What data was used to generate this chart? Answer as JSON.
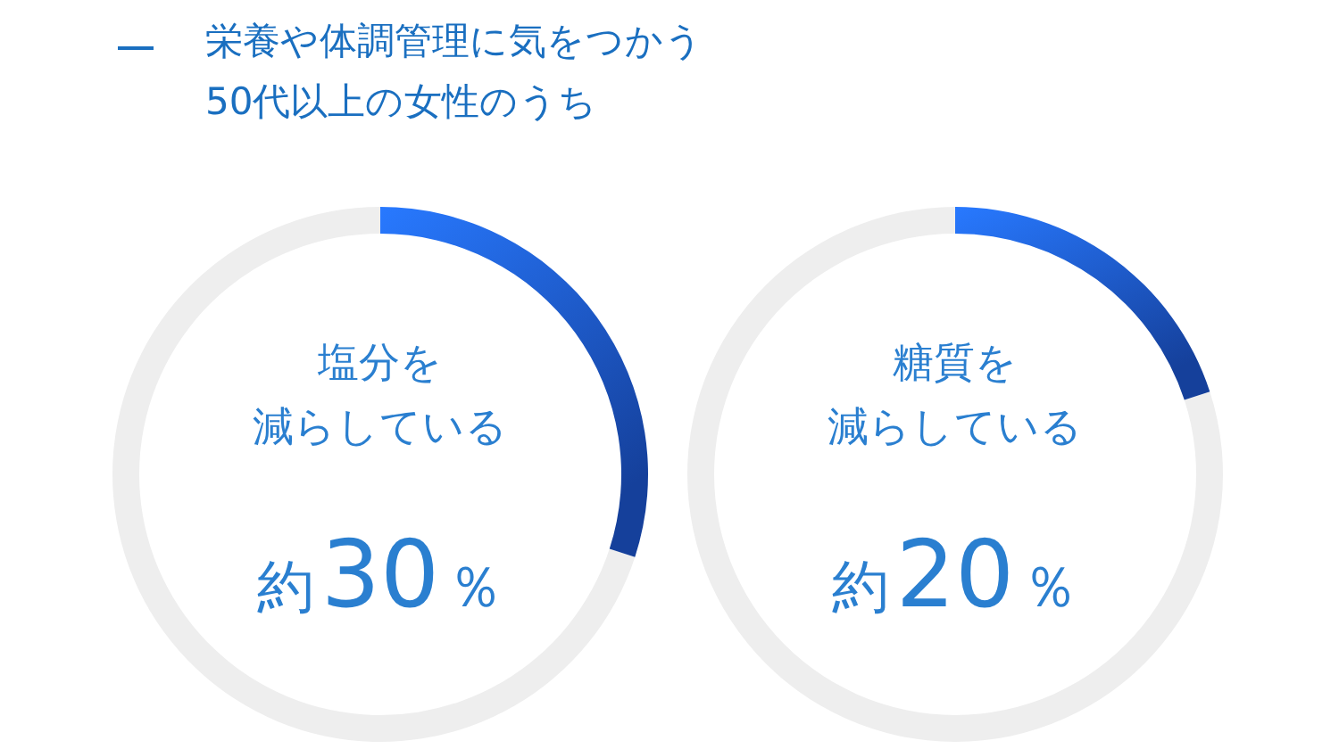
{
  "chart_data": [
    {
      "type": "donut",
      "subtitle": "栄養や体調管理に気をつかう\n50代以上の女性のうち",
      "title": "塩分を減らしている",
      "annotations": [
        "約30％"
      ],
      "categories": [
        null,
        null
      ],
      "values": [
        30,
        70
      ],
      "colors": [
        "#1a4fc0",
        "#eeeeee"
      ]
    },
    {
      "type": "donut",
      "title": "糖質を減らしている",
      "annotations": [
        "約20％"
      ],
      "categories": [
        null,
        null
      ],
      "values": [
        20,
        80
      ],
      "colors": [
        "#1a4fc0",
        "#eeeeee"
      ]
    }
  ]
}
